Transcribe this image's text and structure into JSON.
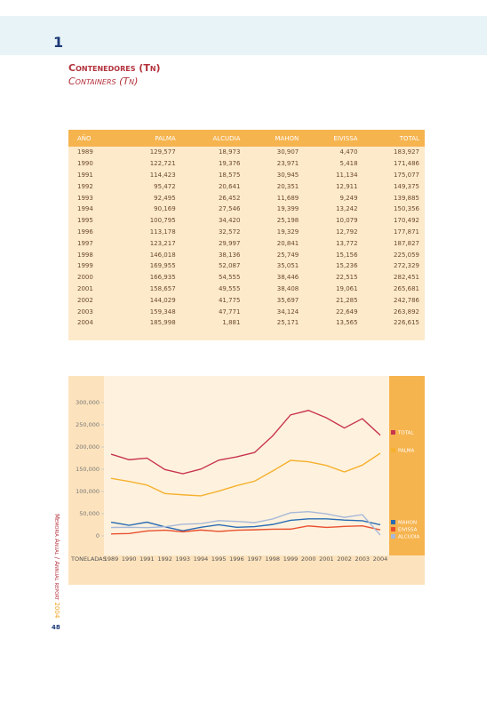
{
  "header": {
    "number": "1",
    "title": "Contenedores (Tn)",
    "subtitle": "Containers (Tn)"
  },
  "table": {
    "columns": [
      "AÑO",
      "PALMA",
      "ALCUDIA",
      "MAHON",
      "EIVISSA",
      "TOTAL"
    ],
    "rows": [
      [
        "1989",
        "129,577",
        "18,973",
        "30,907",
        "4,470",
        "183,927"
      ],
      [
        "1990",
        "122,721",
        "19,376",
        "23,971",
        "5,418",
        "171,486"
      ],
      [
        "1991",
        "114,423",
        "18,575",
        "30,945",
        "11,134",
        "175,077"
      ],
      [
        "1992",
        "95,472",
        "20,641",
        "20,351",
        "12,911",
        "149,375"
      ],
      [
        "1993",
        "92,495",
        "26,452",
        "11,689",
        "9,249",
        "139,885"
      ],
      [
        "1994",
        "90,169",
        "27,546",
        "19,399",
        "13,242",
        "150,356"
      ],
      [
        "1995",
        "100,795",
        "34,420",
        "25,198",
        "10,079",
        "170,492"
      ],
      [
        "1996",
        "113,178",
        "32,572",
        "19,329",
        "12,792",
        "177,871"
      ],
      [
        "1997",
        "123,217",
        "29,997",
        "20,841",
        "13,772",
        "187,827"
      ],
      [
        "1998",
        "146,018",
        "38,136",
        "25,749",
        "15,156",
        "225,059"
      ],
      [
        "1999",
        "169,955",
        "52,087",
        "35,051",
        "15,236",
        "272,329"
      ],
      [
        "2000",
        "166,935",
        "54,555",
        "38,446",
        "22,515",
        "282,451"
      ],
      [
        "2001",
        "158,657",
        "49,555",
        "38,408",
        "19,061",
        "265,681"
      ],
      [
        "2002",
        "144,029",
        "41,775",
        "35,697",
        "21,285",
        "242,786"
      ],
      [
        "2003",
        "159,348",
        "47,771",
        "34,124",
        "22,649",
        "263,892"
      ],
      [
        "2004",
        "185,998",
        "1,881",
        "25,171",
        "13,565",
        "226,615"
      ]
    ]
  },
  "chart_data": {
    "type": "line",
    "x_label": "TONELADAS",
    "categories": [
      "1989",
      "1990",
      "1991",
      "1992",
      "1993",
      "1994",
      "1995",
      "1996",
      "1997",
      "1998",
      "1999",
      "2000",
      "2001",
      "2002",
      "2003",
      "2004"
    ],
    "ylim": [
      -40000,
      360000
    ],
    "yticks": [
      {
        "value": 0,
        "label": "0"
      },
      {
        "value": 50000,
        "label": "50,000"
      },
      {
        "value": 100000,
        "label": "100,000"
      },
      {
        "value": 150000,
        "label": "150,000"
      },
      {
        "value": 200000,
        "label": "200,000"
      },
      {
        "value": 250000,
        "label": "250,000"
      },
      {
        "value": 300000,
        "label": "300,000"
      }
    ],
    "series": [
      {
        "name": "TOTAL",
        "color": "#c8354f",
        "values": [
          183927,
          171486,
          175077,
          149375,
          139885,
          150356,
          170492,
          177871,
          187827,
          225059,
          272329,
          282451,
          265681,
          242786,
          263892,
          226615
        ]
      },
      {
        "name": "PALMA",
        "color": "#f6b02e",
        "values": [
          129577,
          122721,
          114423,
          95472,
          92495,
          90169,
          100795,
          113178,
          123217,
          146018,
          169955,
          166935,
          158657,
          144029,
          159348,
          185998
        ]
      },
      {
        "name": "MAHON",
        "color": "#2b6cb3",
        "values": [
          30907,
          23971,
          30945,
          20351,
          11689,
          19399,
          25198,
          19329,
          20841,
          25749,
          35051,
          38446,
          38408,
          35697,
          34124,
          25171
        ]
      },
      {
        "name": "EIVISSA",
        "color": "#e9502e",
        "values": [
          4470,
          5418,
          11134,
          12911,
          9249,
          13242,
          10079,
          12792,
          13772,
          15156,
          15236,
          22515,
          19061,
          21285,
          22649,
          13565
        ]
      },
      {
        "name": "ALCUDIA",
        "color": "#a7b8d9",
        "values": [
          18973,
          19376,
          18575,
          20641,
          26452,
          27546,
          34420,
          32572,
          29997,
          38136,
          52087,
          54555,
          49555,
          41775,
          47771,
          1881
        ]
      }
    ]
  },
  "footer": {
    "side_text": "Memoria Anual / Annual report",
    "year": "2004",
    "page": "48"
  }
}
